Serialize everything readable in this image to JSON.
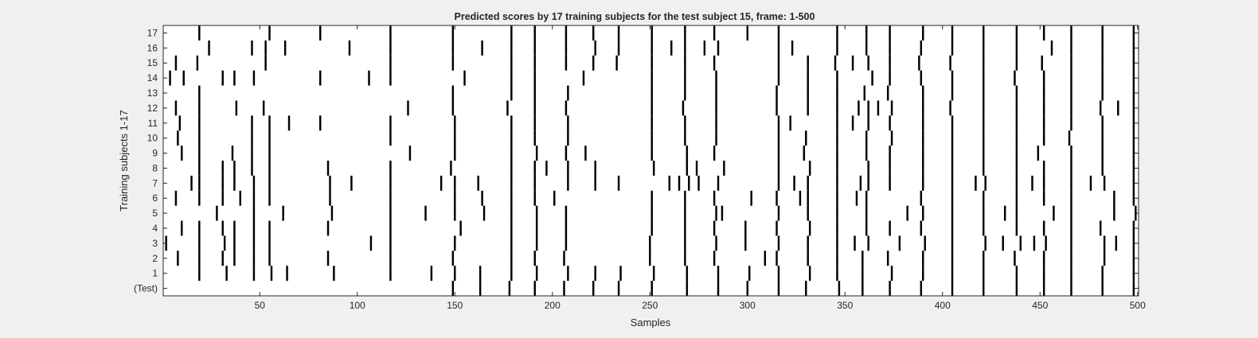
{
  "chart_data": {
    "type": "heatmap",
    "title": "Predicted scores by 17 training subjects for the test subject 15, frame: 1-500",
    "xlabel": "Samples",
    "ylabel": "Training subjects 1-17",
    "xlim": [
      1,
      500
    ],
    "xticks": [
      50,
      100,
      150,
      200,
      250,
      300,
      350,
      400,
      450,
      500
    ],
    "row_labels": [
      "(Test)",
      "1",
      "2",
      "3",
      "4",
      "5",
      "6",
      "7",
      "8",
      "9",
      "10",
      "11",
      "12",
      "13",
      "14",
      "15",
      "16",
      "17"
    ],
    "grid": false,
    "colors": {
      "background": "#ffffff",
      "mark": "#000000",
      "figure": "#f0f0f0"
    },
    "rows": [
      {
        "label": "(Test)",
        "samples": [
          149,
          163,
          178,
          191,
          206,
          221,
          234,
          251,
          269,
          285,
          300,
          316,
          330,
          347,
          359,
          373,
          389,
          405,
          421,
          438,
          452,
          466,
          482,
          498
        ]
      },
      {
        "label": "1",
        "samples": [
          19,
          33,
          47,
          56,
          64,
          88,
          117,
          138,
          150,
          163,
          179,
          192,
          208,
          222,
          235,
          252,
          269,
          285,
          301,
          316,
          332,
          346,
          359,
          374,
          390,
          405,
          421,
          438,
          452,
          466,
          482,
          498
        ]
      },
      {
        "label": "2",
        "samples": [
          8,
          19,
          31,
          37,
          47,
          55,
          85,
          117,
          149,
          179,
          191,
          206,
          250,
          268,
          283,
          309,
          315,
          331,
          346,
          359,
          372,
          390,
          405,
          421,
          437,
          452,
          466,
          483,
          498
        ]
      },
      {
        "label": "3",
        "samples": [
          2,
          19,
          32,
          37,
          47,
          55,
          107,
          117,
          150,
          179,
          192,
          207,
          250,
          268,
          284,
          299,
          316,
          331,
          346,
          355,
          362,
          378,
          391,
          405,
          422,
          431,
          440,
          447,
          453,
          466,
          483,
          489,
          498
        ]
      },
      {
        "label": "4",
        "samples": [
          10,
          19,
          31,
          37,
          47,
          55,
          85,
          117,
          153,
          179,
          192,
          207,
          251,
          268,
          283,
          299,
          315,
          332,
          346,
          361,
          373,
          389,
          405,
          421,
          438,
          452,
          466,
          481,
          498
        ]
      },
      {
        "label": "5",
        "samples": [
          28,
          47,
          62,
          87,
          117,
          135,
          150,
          165,
          179,
          192,
          207,
          251,
          268,
          284,
          287,
          316,
          331,
          346,
          361,
          382,
          390,
          405,
          421,
          432,
          438,
          457,
          466,
          488,
          499
        ]
      },
      {
        "label": "6",
        "samples": [
          7,
          19,
          31,
          40,
          47,
          55,
          86,
          117,
          150,
          164,
          179,
          191,
          201,
          251,
          268,
          283,
          302,
          315,
          327,
          331,
          346,
          356,
          361,
          389,
          405,
          421,
          438,
          452,
          466,
          488,
          498
        ]
      },
      {
        "label": "7",
        "samples": [
          15,
          19,
          31,
          37,
          47,
          55,
          86,
          97,
          117,
          143,
          150,
          162,
          179,
          191,
          208,
          222,
          234,
          260,
          265,
          270,
          275,
          285,
          316,
          324,
          331,
          346,
          358,
          362,
          373,
          390,
          405,
          417,
          422,
          438,
          446,
          452,
          466,
          476,
          483,
          498
        ]
      },
      {
        "label": "8",
        "samples": [
          19,
          31,
          37,
          46,
          55,
          85,
          117,
          148,
          179,
          191,
          197,
          208,
          222,
          252,
          269,
          274,
          288,
          316,
          332,
          346,
          362,
          373,
          390,
          405,
          421,
          438,
          452,
          466,
          482,
          498
        ]
      },
      {
        "label": "9",
        "samples": [
          10,
          19,
          36,
          46,
          55,
          127,
          150,
          179,
          192,
          207,
          217,
          251,
          269,
          283,
          316,
          329,
          346,
          361,
          373,
          390,
          405,
          421,
          438,
          449,
          466,
          482,
          498
        ]
      },
      {
        "label": "10",
        "samples": [
          8,
          19,
          46,
          55,
          117,
          150,
          179,
          191,
          208,
          251,
          268,
          284,
          316,
          330,
          346,
          361,
          374,
          390,
          405,
          421,
          438,
          452,
          465,
          482,
          498
        ]
      },
      {
        "label": "11",
        "samples": [
          9,
          19,
          46,
          55,
          65,
          81,
          117,
          150,
          179,
          191,
          208,
          251,
          268,
          284,
          316,
          322,
          346,
          354,
          362,
          373,
          390,
          405,
          421,
          438,
          452,
          466,
          482,
          498
        ]
      },
      {
        "label": "12",
        "samples": [
          7,
          19,
          38,
          52,
          126,
          149,
          177,
          191,
          207,
          251,
          267,
          284,
          315,
          331,
          346,
          357,
          362,
          367,
          374,
          390,
          404,
          421,
          438,
          452,
          466,
          481,
          490,
          498
        ]
      },
      {
        "label": "13",
        "samples": [
          19,
          149,
          179,
          191,
          208,
          251,
          268,
          284,
          315,
          331,
          346,
          360,
          372,
          390,
          405,
          421,
          438,
          452,
          466,
          482,
          498
        ]
      },
      {
        "label": "14",
        "samples": [
          4,
          11,
          31,
          37,
          47,
          81,
          106,
          117,
          155,
          179,
          191,
          216,
          251,
          268,
          284,
          316,
          331,
          346,
          364,
          373,
          389,
          405,
          421,
          437,
          452,
          466,
          482,
          498
        ]
      },
      {
        "label": "15",
        "samples": [
          7,
          18,
          53,
          117,
          149,
          179,
          191,
          207,
          221,
          233,
          251,
          268,
          283,
          316,
          331,
          345,
          354,
          362,
          373,
          388,
          404,
          421,
          438,
          451,
          466,
          482,
          498
        ]
      },
      {
        "label": "16",
        "samples": [
          24,
          46,
          53,
          63,
          96,
          117,
          149,
          164,
          179,
          191,
          207,
          222,
          234,
          251,
          261,
          268,
          278,
          285,
          316,
          323,
          346,
          361,
          373,
          389,
          405,
          421,
          438,
          456,
          466,
          482,
          498
        ]
      },
      {
        "label": "17",
        "samples": [
          19,
          55,
          81,
          117,
          149,
          179,
          191,
          207,
          221,
          234,
          251,
          268,
          283,
          300,
          316,
          346,
          361,
          373,
          390,
          405,
          421,
          438,
          452,
          466,
          482,
          498
        ]
      }
    ]
  }
}
